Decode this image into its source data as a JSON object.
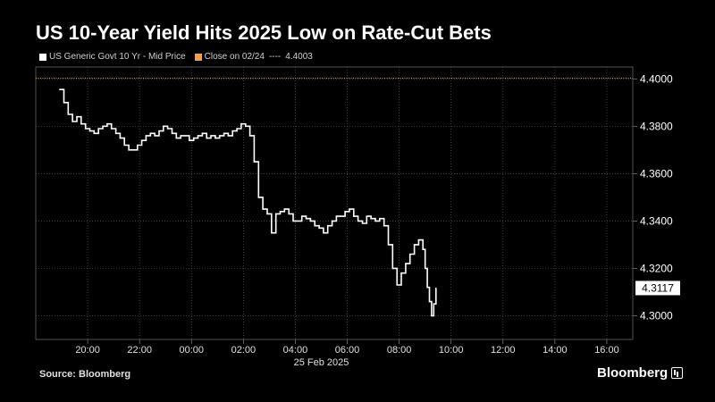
{
  "title": "US 10-Year Yield Hits 2025 Low on Rate-Cut Bets",
  "legend": {
    "series_label": "US Generic Govt 10 Yr - Mid Price",
    "close_label": "Close on 02/24",
    "close_dashes": "----",
    "close_value": "4.4003"
  },
  "footer": {
    "source": "Source: Bloomberg",
    "brand": "Bloomberg"
  },
  "colors": {
    "background": "#000000",
    "series": "#ffffff",
    "close_line": "#f0a050",
    "grid": "#555555",
    "axis": "#888888"
  },
  "chart_data": {
    "type": "line",
    "date_label": "25 Feb 2025",
    "xlim": [
      "2025-02-24T18:00",
      "2025-02-25T17:00"
    ],
    "ylim": [
      4.29,
      4.405
    ],
    "x_ticks": [
      {
        "t": "2025-02-24T20:00",
        "label": "20:00"
      },
      {
        "t": "2025-02-24T22:00",
        "label": "22:00"
      },
      {
        "t": "2025-02-25T00:00",
        "label": "00:00"
      },
      {
        "t": "2025-02-25T02:00",
        "label": "02:00"
      },
      {
        "t": "2025-02-25T04:00",
        "label": "04:00"
      },
      {
        "t": "2025-02-25T06:00",
        "label": "06:00"
      },
      {
        "t": "2025-02-25T08:00",
        "label": "08:00"
      },
      {
        "t": "2025-02-25T10:00",
        "label": "10:00"
      },
      {
        "t": "2025-02-25T12:00",
        "label": "12:00"
      },
      {
        "t": "2025-02-25T14:00",
        "label": "14:00"
      },
      {
        "t": "2025-02-25T16:00",
        "label": "16:00"
      }
    ],
    "y_ticks": [
      "4.3000",
      "4.3200",
      "4.3400",
      "4.3600",
      "4.3800",
      "4.4000"
    ],
    "grid": true,
    "axis_side": "right",
    "close_reference": 4.4003,
    "last_value_label": "4.3117",
    "series": [
      {
        "name": "US Generic Govt 10 Yr - Mid Price",
        "x": [
          "2025-02-24T18:55",
          "2025-02-24T19:05",
          "2025-02-24T19:15",
          "2025-02-24T19:25",
          "2025-02-24T19:35",
          "2025-02-24T19:45",
          "2025-02-24T19:55",
          "2025-02-24T20:05",
          "2025-02-24T20:15",
          "2025-02-24T20:25",
          "2025-02-24T20:35",
          "2025-02-24T20:45",
          "2025-02-24T20:55",
          "2025-02-24T21:05",
          "2025-02-24T21:15",
          "2025-02-24T21:25",
          "2025-02-24T21:35",
          "2025-02-24T21:45",
          "2025-02-24T21:55",
          "2025-02-24T22:05",
          "2025-02-24T22:15",
          "2025-02-24T22:25",
          "2025-02-24T22:35",
          "2025-02-24T22:45",
          "2025-02-24T22:55",
          "2025-02-24T23:05",
          "2025-02-24T23:15",
          "2025-02-24T23:25",
          "2025-02-24T23:35",
          "2025-02-24T23:45",
          "2025-02-24T23:55",
          "2025-02-25T00:05",
          "2025-02-25T00:15",
          "2025-02-25T00:25",
          "2025-02-25T00:35",
          "2025-02-25T00:45",
          "2025-02-25T00:55",
          "2025-02-25T01:05",
          "2025-02-25T01:15",
          "2025-02-25T01:25",
          "2025-02-25T01:35",
          "2025-02-25T01:45",
          "2025-02-25T01:55",
          "2025-02-25T02:05",
          "2025-02-25T02:15",
          "2025-02-25T02:25",
          "2025-02-25T02:35",
          "2025-02-25T02:45",
          "2025-02-25T02:55",
          "2025-02-25T03:05",
          "2025-02-25T03:15",
          "2025-02-25T03:25",
          "2025-02-25T03:35",
          "2025-02-25T03:45",
          "2025-02-25T03:55",
          "2025-02-25T04:05",
          "2025-02-25T04:15",
          "2025-02-25T04:25",
          "2025-02-25T04:35",
          "2025-02-25T04:45",
          "2025-02-25T04:55",
          "2025-02-25T05:05",
          "2025-02-25T05:15",
          "2025-02-25T05:25",
          "2025-02-25T05:35",
          "2025-02-25T05:45",
          "2025-02-25T05:55",
          "2025-02-25T06:05",
          "2025-02-25T06:15",
          "2025-02-25T06:25",
          "2025-02-25T06:35",
          "2025-02-25T06:45",
          "2025-02-25T06:55",
          "2025-02-25T07:05",
          "2025-02-25T07:15",
          "2025-02-25T07:25",
          "2025-02-25T07:35",
          "2025-02-25T07:45",
          "2025-02-25T07:55",
          "2025-02-25T08:05",
          "2025-02-25T08:15",
          "2025-02-25T08:25",
          "2025-02-25T08:35",
          "2025-02-25T08:45",
          "2025-02-25T08:55",
          "2025-02-25T09:00",
          "2025-02-25T09:05",
          "2025-02-25T09:10",
          "2025-02-25T09:15",
          "2025-02-25T09:20",
          "2025-02-25T09:25"
        ],
        "y": [
          4.3955,
          4.39,
          4.385,
          4.382,
          4.384,
          4.381,
          4.379,
          4.378,
          4.377,
          4.379,
          4.38,
          4.381,
          4.379,
          4.377,
          4.375,
          4.372,
          4.37,
          4.37,
          4.372,
          4.374,
          4.376,
          4.377,
          4.376,
          4.378,
          4.38,
          4.379,
          4.377,
          4.375,
          4.376,
          4.376,
          4.374,
          4.375,
          4.376,
          4.377,
          4.375,
          4.376,
          4.375,
          4.376,
          4.377,
          4.376,
          4.378,
          4.379,
          4.381,
          4.38,
          4.376,
          4.365,
          4.35,
          4.345,
          4.343,
          4.335,
          4.343,
          4.344,
          4.345,
          4.343,
          4.34,
          4.34,
          4.342,
          4.341,
          4.34,
          4.338,
          4.337,
          4.335,
          4.338,
          4.34,
          4.342,
          4.342,
          4.344,
          4.345,
          4.342,
          4.34,
          4.339,
          4.342,
          4.341,
          4.34,
          4.341,
          4.338,
          4.33,
          4.32,
          4.313,
          4.318,
          4.322,
          4.326,
          4.33,
          4.332,
          4.328,
          4.32,
          4.312,
          4.306,
          4.3,
          4.305,
          4.3117
        ]
      }
    ]
  }
}
